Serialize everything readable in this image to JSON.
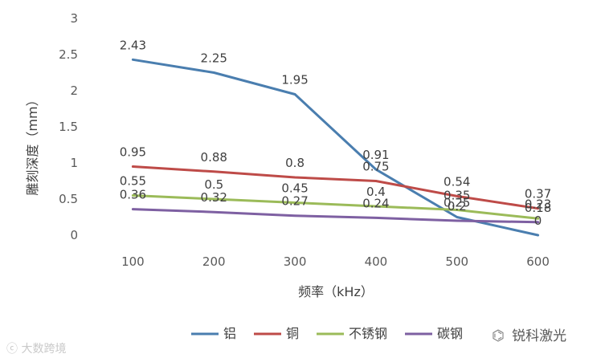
{
  "chart_data": {
    "type": "line",
    "title": "",
    "xlabel": "频率（kHz）",
    "ylabel": "雕刻深度（mm）",
    "categories": [
      "100",
      "200",
      "300",
      "400",
      "500",
      "600"
    ],
    "ylim": [
      0,
      3
    ],
    "yticks": [
      "0",
      "0.5",
      "1",
      "1.5",
      "2",
      "2.5",
      "3"
    ],
    "grid": false,
    "legend_position": "bottom",
    "series": [
      {
        "name": "铝",
        "color": "#4a7eaf",
        "values": [
          2.43,
          2.25,
          1.95,
          0.91,
          0.25,
          0
        ]
      },
      {
        "name": "铜",
        "color": "#be4b48",
        "values": [
          0.95,
          0.88,
          0.8,
          0.75,
          0.54,
          0.37
        ]
      },
      {
        "name": "不锈钢",
        "color": "#9bbb59",
        "values": [
          0.55,
          0.5,
          0.45,
          0.4,
          0.35,
          0.23
        ]
      },
      {
        "name": "碳钢",
        "color": "#7e60a2",
        "values": [
          0.36,
          0.32,
          0.27,
          0.24,
          0.2,
          0.18
        ]
      }
    ],
    "data_labels": [
      [
        "2.43",
        "2.25",
        "1.95",
        "0.91",
        "0.25",
        "0"
      ],
      [
        "0.95",
        "0.88",
        "0.8",
        "0.75",
        "0.54",
        "0.37"
      ],
      [
        "0.55",
        "0.5",
        "0.45",
        "0.4",
        "0.35",
        "0.23"
      ],
      [
        "0.36",
        "0.32",
        "0.27",
        "0.24",
        "0.2",
        "0.18"
      ]
    ]
  },
  "watermarks": {
    "left": "大数跨境",
    "right": "锐科激光"
  }
}
